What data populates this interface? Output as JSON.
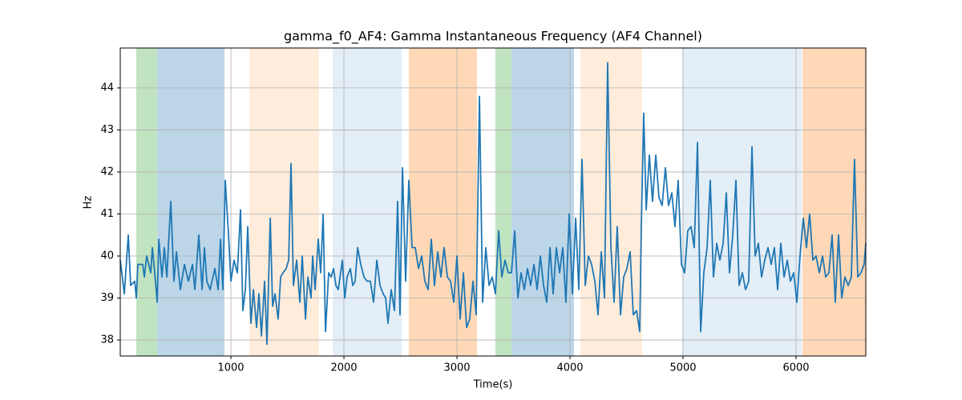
{
  "chart_data": {
    "type": "line",
    "title": "gamma_f0_AF4: Gamma Instantaneous Frequency (AF4 Channel)",
    "xlabel": "Time(s)",
    "ylabel": "Hz",
    "color": "#1f77b4",
    "grid": true,
    "xlim": [
      21,
      6617
    ],
    "xticks": [
      1000,
      2000,
      3000,
      4000,
      5000,
      6000
    ],
    "ylim": [
      37.62,
      44.95
    ],
    "yticks": [
      38,
      39,
      40,
      41,
      42,
      43,
      44
    ],
    "spans": [
      {
        "x0": 163,
        "x1": 348,
        "color": "#c0e3c0"
      },
      {
        "x0": 348,
        "x1": 943,
        "color": "#bcd6e8"
      },
      {
        "x0": 1163,
        "x1": 1780,
        "color": "#ffecdb"
      },
      {
        "x0": 1901,
        "x1": 2511,
        "color": "#e4eef7"
      },
      {
        "x0": 2574,
        "x1": 3177,
        "color": "#ffd9b7"
      },
      {
        "x0": 3340,
        "x1": 3482,
        "color": "#c0e3c0"
      },
      {
        "x0": 3482,
        "x1": 4035,
        "color": "#bcd6e8"
      },
      {
        "x0": 4092,
        "x1": 4638,
        "color": "#ffecdb"
      },
      {
        "x0": 4993,
        "x1": 6050,
        "color": "#e4eef7"
      },
      {
        "x0": 6057,
        "x1": 6617,
        "color": "#ffd9b7"
      }
    ],
    "x": [
      21,
      57,
      92,
      113,
      149,
      163,
      177,
      220,
      234,
      255,
      291,
      305,
      326,
      348,
      362,
      390,
      411,
      433,
      468,
      496,
      518,
      553,
      589,
      624,
      660,
      681,
      716,
      745,
      766,
      787,
      816,
      858,
      887,
      908,
      929,
      950,
      979,
      1000,
      1028,
      1057,
      1085,
      1106,
      1128,
      1149,
      1177,
      1199,
      1227,
      1248,
      1270,
      1298,
      1319,
      1348,
      1369,
      1390,
      1418,
      1440,
      1461,
      1489,
      1511,
      1532,
      1553,
      1582,
      1610,
      1631,
      1660,
      1681,
      1709,
      1723,
      1745,
      1773,
      1794,
      1816,
      1837,
      1865,
      1887,
      1908,
      1929,
      1950,
      1986,
      2007,
      2028,
      2057,
      2078,
      2099,
      2121,
      2149,
      2177,
      2206,
      2234,
      2262,
      2291,
      2319,
      2347,
      2369,
      2390,
      2418,
      2447,
      2475,
      2496,
      2518,
      2546,
      2574,
      2603,
      2631,
      2660,
      2688,
      2716,
      2745,
      2773,
      2801,
      2830,
      2858,
      2886,
      2915,
      2943,
      2972,
      3000,
      3028,
      3057,
      3085,
      3113,
      3142,
      3170,
      3199,
      3227,
      3255,
      3284,
      3312,
      3340,
      3369,
      3397,
      3425,
      3454,
      3482,
      3511,
      3539,
      3567,
      3596,
      3624,
      3652,
      3681,
      3709,
      3738,
      3766,
      3794,
      3823,
      3851,
      3879,
      3908,
      3936,
      3964,
      3993,
      4021,
      4050,
      4078,
      4106,
      4135,
      4163,
      4191,
      4220,
      4248,
      4277,
      4305,
      4333,
      4362,
      4390,
      4418,
      4447,
      4475,
      4503,
      4532,
      4560,
      4589,
      4617,
      4631,
      4652,
      4674,
      4702,
      4730,
      4759,
      4787,
      4815,
      4844,
      4872,
      4901,
      4929,
      4957,
      4986,
      5014,
      5042,
      5071,
      5099,
      5128,
      5156,
      5184,
      5213,
      5241,
      5269,
      5298,
      5326,
      5355,
      5383,
      5411,
      5440,
      5468,
      5496,
      5525,
      5553,
      5581,
      5610,
      5638,
      5667,
      5695,
      5723,
      5752,
      5780,
      5808,
      5837,
      5865,
      5894,
      5922,
      5950,
      5979,
      6007,
      6035,
      6064,
      6092,
      6120,
      6149,
      6177,
      6206,
      6234,
      6262,
      6291,
      6319,
      6347,
      6376,
      6404,
      6432,
      6461,
      6489,
      6517,
      6546,
      6574,
      6602,
      6617
    ],
    "values": [
      39.9,
      39.1,
      40.5,
      39.3,
      39.4,
      39.0,
      39.8,
      39.8,
      39.5,
      40.0,
      39.6,
      40.2,
      39.6,
      38.9,
      40.4,
      39.5,
      40.2,
      39.5,
      41.3,
      39.4,
      40.1,
      39.2,
      39.8,
      39.4,
      39.8,
      39.2,
      40.5,
      39.2,
      40.2,
      39.4,
      39.2,
      39.7,
      39.2,
      40.4,
      39.2,
      41.8,
      40.5,
      39.4,
      39.9,
      39.6,
      41.1,
      38.7,
      39.2,
      40.7,
      38.4,
      39.2,
      38.3,
      39.1,
      38.1,
      39.4,
      37.9,
      40.9,
      38.8,
      39.1,
      38.5,
      39.5,
      39.6,
      39.7,
      39.9,
      42.2,
      39.3,
      39.9,
      38.9,
      40.0,
      38.5,
      39.5,
      39.0,
      40.0,
      39.2,
      40.4,
      39.6,
      41.0,
      38.2,
      39.6,
      39.5,
      39.7,
      39.3,
      39.2,
      39.9,
      39.0,
      39.5,
      39.7,
      39.3,
      39.4,
      40.2,
      39.8,
      39.5,
      39.4,
      39.4,
      38.9,
      39.9,
      39.3,
      39.1,
      39.0,
      38.4,
      39.2,
      38.7,
      41.3,
      38.6,
      42.1,
      39.4,
      41.8,
      40.2,
      40.2,
      39.7,
      40.0,
      39.4,
      39.2,
      40.4,
      39.3,
      40.1,
      39.5,
      40.2,
      39.5,
      39.4,
      38.9,
      40.0,
      38.5,
      39.6,
      38.3,
      38.5,
      39.4,
      38.6,
      43.8,
      38.9,
      40.2,
      39.3,
      39.5,
      39.1,
      40.6,
      39.5,
      39.9,
      39.6,
      39.6,
      40.6,
      39.0,
      39.6,
      39.2,
      39.7,
      39.3,
      39.8,
      39.2,
      40.0,
      39.3,
      38.9,
      40.2,
      39.1,
      40.2,
      39.6,
      40.2,
      38.9,
      41.0,
      39.1,
      40.9,
      39.2,
      42.3,
      39.3,
      40.0,
      39.8,
      39.4,
      38.6,
      40.1,
      39.0,
      44.6,
      40.2,
      38.9,
      40.7,
      38.6,
      39.5,
      39.7,
      40.1,
      38.6,
      38.7,
      38.2,
      40.7,
      43.4,
      41.1,
      42.4,
      41.3,
      42.4,
      41.4,
      41.2,
      42.1,
      41.2,
      41.5,
      40.7,
      41.8,
      39.8,
      39.6,
      40.6,
      40.7,
      40.2,
      42.7,
      38.2,
      39.6,
      40.2,
      41.8,
      39.5,
      40.3,
      39.9,
      40.3,
      41.5,
      39.6,
      40.5,
      41.8,
      39.3,
      39.6,
      39.2,
      39.4,
      42.6,
      40.0,
      40.3,
      39.5,
      39.9,
      40.2,
      39.8,
      40.2,
      39.2,
      40.3,
      39.5,
      39.9,
      39.4,
      39.6,
      38.9,
      40.0,
      40.9,
      40.2,
      41.0,
      39.9,
      40.0,
      39.6,
      40.0,
      39.5,
      39.6,
      40.5,
      38.9,
      40.5,
      39.0,
      39.5,
      39.3,
      39.5,
      42.3,
      39.5,
      39.6,
      39.8,
      40.3
    ]
  }
}
